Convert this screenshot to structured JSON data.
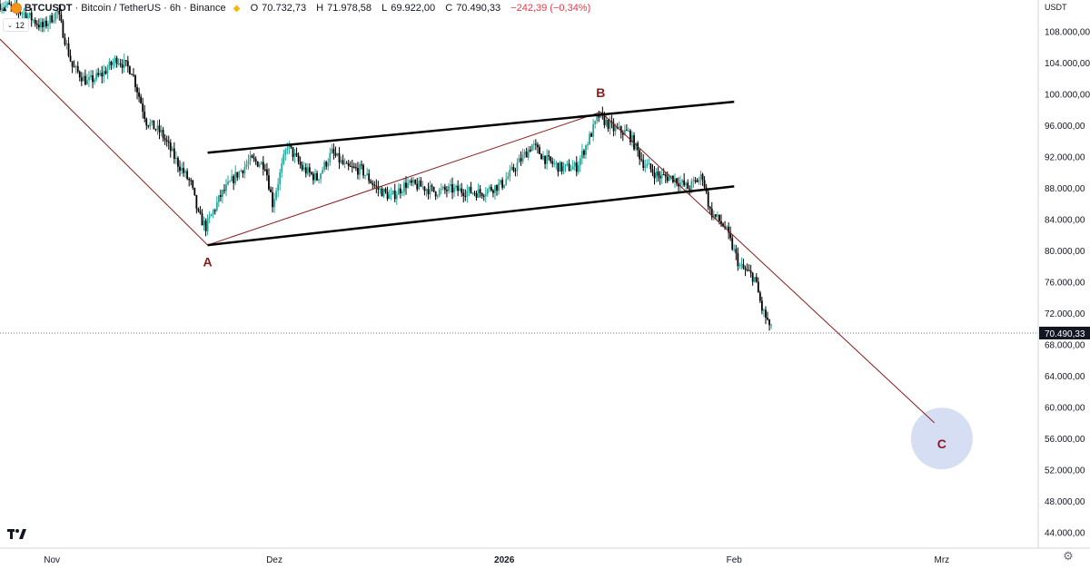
{
  "header": {
    "symbol": "BTCUSDT",
    "description": "· Bitcoin / TetherUS · 6h · Binance",
    "open_label": "O",
    "open": "70.732,73",
    "high_label": "H",
    "high": "71.978,58",
    "low_label": "L",
    "low": "69.922,00",
    "close_label": "C",
    "close": "70.490,33",
    "change": "−242,39 (−0,34%)",
    "indicator_chip": "12"
  },
  "price_axis": {
    "currency": "USDT"
  },
  "icons": {
    "symbol": "bitcoin-coin-icon",
    "exchange": "binance-icon",
    "logo": "tradingview-logo",
    "settings": "gear-icon",
    "collapse": "chevron-up-icon"
  },
  "colors": {
    "up": "#26a69a",
    "down": "#000000",
    "wave_line": "#8b1a1a",
    "channel": "#000000",
    "target_circle": "#c7d3ef",
    "label": "#8b1a1a"
  },
  "chart_data": {
    "type": "candlestick",
    "ylim": [
      42000,
      112000
    ],
    "y_ticks": [
      44000,
      48000,
      52000,
      56000,
      60000,
      64000,
      68000,
      72000,
      76000,
      80000,
      84000,
      88000,
      92000,
      96000,
      100000,
      104000,
      108000
    ],
    "y_tick_labels": [
      "44.000,00",
      "48.000,00",
      "52.000,00",
      "56.000,00",
      "60.000,00",
      "64.000,00",
      "68.000,00",
      "72.000,00",
      "76.000,00",
      "80.000,00",
      "84.000,00",
      "88.000,00",
      "92.000,00",
      "96.000,00",
      "100.000,00",
      "104.000,00",
      "108.000,00"
    ],
    "x_range": [
      "2025-10-25",
      "2026-03-14"
    ],
    "x_ticks": [
      {
        "date": "2025-11-01",
        "label": "Nov",
        "bold": false
      },
      {
        "date": "2025-12-01",
        "label": "Dez",
        "bold": false
      },
      {
        "date": "2026-01-01",
        "label": "2026",
        "bold": true
      },
      {
        "date": "2026-02-01",
        "label": "Feb",
        "bold": false
      },
      {
        "date": "2026-03-01",
        "label": "Mrz",
        "bold": false
      }
    ],
    "last_price": 70490.33,
    "last_price_label": "70.490,33",
    "price_path": [
      [
        "2025-10-25",
        111500
      ],
      [
        "2025-10-27",
        111000
      ],
      [
        "2025-10-29",
        110000
      ],
      [
        "2025-10-31",
        108500
      ],
      [
        "2025-11-02",
        110500
      ],
      [
        "2025-11-04",
        103500
      ],
      [
        "2025-11-06",
        101500
      ],
      [
        "2025-11-08",
        102500
      ],
      [
        "2025-11-10",
        104500
      ],
      [
        "2025-11-12",
        103000
      ],
      [
        "2025-11-14",
        96500
      ],
      [
        "2025-11-16",
        95000
      ],
      [
        "2025-11-18",
        91500
      ],
      [
        "2025-11-20",
        88500
      ],
      [
        "2025-11-21",
        84500
      ],
      [
        "2025-11-22",
        83000
      ],
      [
        "2025-11-24",
        87000
      ],
      [
        "2025-11-26",
        89500
      ],
      [
        "2025-11-28",
        91500
      ],
      [
        "2025-11-30",
        91000
      ],
      [
        "2025-12-01",
        86000
      ],
      [
        "2025-12-03",
        93500
      ],
      [
        "2025-12-05",
        90500
      ],
      [
        "2025-12-07",
        89200
      ],
      [
        "2025-12-09",
        92500
      ],
      [
        "2025-12-11",
        90500
      ],
      [
        "2025-12-13",
        90300
      ],
      [
        "2025-12-15",
        88000
      ],
      [
        "2025-12-17",
        86800
      ],
      [
        "2025-12-19",
        88500
      ],
      [
        "2025-12-21",
        88200
      ],
      [
        "2025-12-23",
        87500
      ],
      [
        "2025-12-25",
        87800
      ],
      [
        "2025-12-27",
        87600
      ],
      [
        "2025-12-29",
        87400
      ],
      [
        "2026-01-01",
        88500
      ],
      [
        "2026-01-03",
        91000
      ],
      [
        "2026-01-05",
        93500
      ],
      [
        "2026-01-07",
        91500
      ],
      [
        "2026-01-09",
        90500
      ],
      [
        "2026-01-11",
        90700
      ],
      [
        "2026-01-13",
        95000
      ],
      [
        "2026-01-14",
        97200
      ],
      [
        "2026-01-16",
        95500
      ],
      [
        "2026-01-18",
        95000
      ],
      [
        "2026-01-20",
        91200
      ],
      [
        "2026-01-22",
        89500
      ],
      [
        "2026-01-24",
        89300
      ],
      [
        "2026-01-26",
        88000
      ],
      [
        "2026-01-28",
        89500
      ],
      [
        "2026-01-29",
        85000
      ],
      [
        "2026-01-31",
        83000
      ],
      [
        "2026-02-02",
        78000
      ],
      [
        "2026-02-04",
        76500
      ],
      [
        "2026-02-05",
        72500
      ],
      [
        "2026-02-06",
        70490
      ]
    ],
    "annotations": {
      "wave_line": [
        [
          "2025-10-25",
          107000
        ],
        [
          "2025-11-22",
          80700
        ],
        [
          "2026-01-14",
          97700
        ],
        [
          "2026-02-28",
          58000
        ]
      ],
      "channel_upper": [
        [
          "2025-11-22",
          92500
        ],
        [
          "2026-02-01",
          99000
        ]
      ],
      "channel_lower": [
        [
          "2025-11-22",
          80700
        ],
        [
          "2026-02-01",
          88200
        ]
      ],
      "labels": [
        {
          "text": "A",
          "date": "2025-11-22",
          "price": 78400
        },
        {
          "text": "B",
          "date": "2026-01-14",
          "price": 100000
        },
        {
          "text": "C",
          "date": "2026-03-01",
          "price": 55200
        }
      ],
      "target_circle": {
        "date": "2026-03-01",
        "price": 56000
      }
    }
  }
}
